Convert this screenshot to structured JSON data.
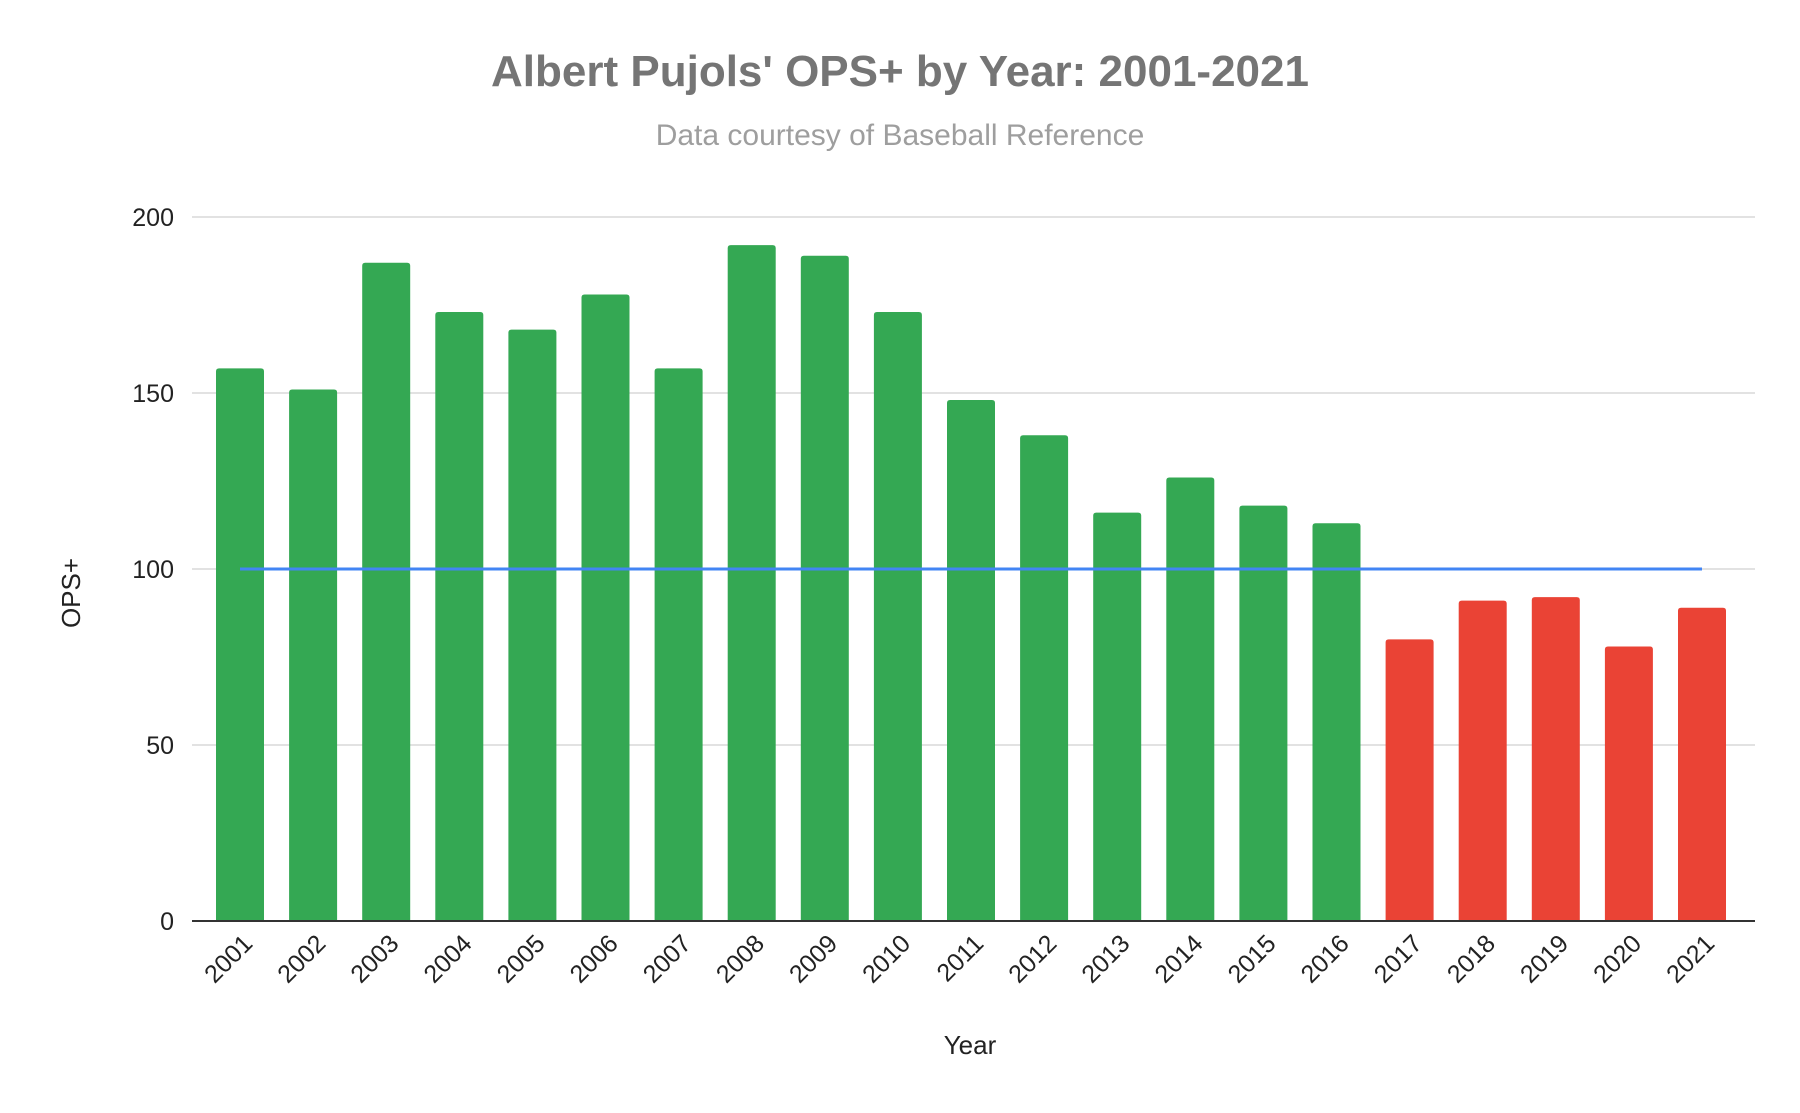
{
  "chart_data": {
    "type": "bar",
    "title": "Albert Pujols' OPS+ by Year: 2001-2021",
    "subtitle": "Data courtesy of Baseball Reference",
    "xlabel": "Year",
    "ylabel": "OPS+",
    "ylim": [
      0,
      200
    ],
    "yticks": [
      "0",
      "50",
      "100",
      "150",
      "200"
    ],
    "grid": true,
    "legend": "none",
    "categories": [
      "2001",
      "2002",
      "2003",
      "2004",
      "2005",
      "2006",
      "2007",
      "2008",
      "2009",
      "2010",
      "2011",
      "2012",
      "2013",
      "2014",
      "2015",
      "2016",
      "2017",
      "2018",
      "2019",
      "2020",
      "2021"
    ],
    "values": [
      157,
      151,
      187,
      173,
      168,
      178,
      157,
      192,
      189,
      173,
      148,
      138,
      116,
      126,
      118,
      113,
      80,
      91,
      92,
      78,
      89
    ],
    "bar_colors": [
      "#34a853",
      "#34a853",
      "#34a853",
      "#34a853",
      "#34a853",
      "#34a853",
      "#34a853",
      "#34a853",
      "#34a853",
      "#34a853",
      "#34a853",
      "#34a853",
      "#34a853",
      "#34a853",
      "#34a853",
      "#34a853",
      "#ea4335",
      "#ea4335",
      "#ea4335",
      "#ea4335",
      "#ea4335"
    ],
    "reference_line": {
      "value": 100,
      "color": "#4285f4"
    },
    "colors": {
      "above": "#34a853",
      "below": "#ea4335",
      "grid": "#d9d9d9",
      "axis": "#333333"
    }
  }
}
